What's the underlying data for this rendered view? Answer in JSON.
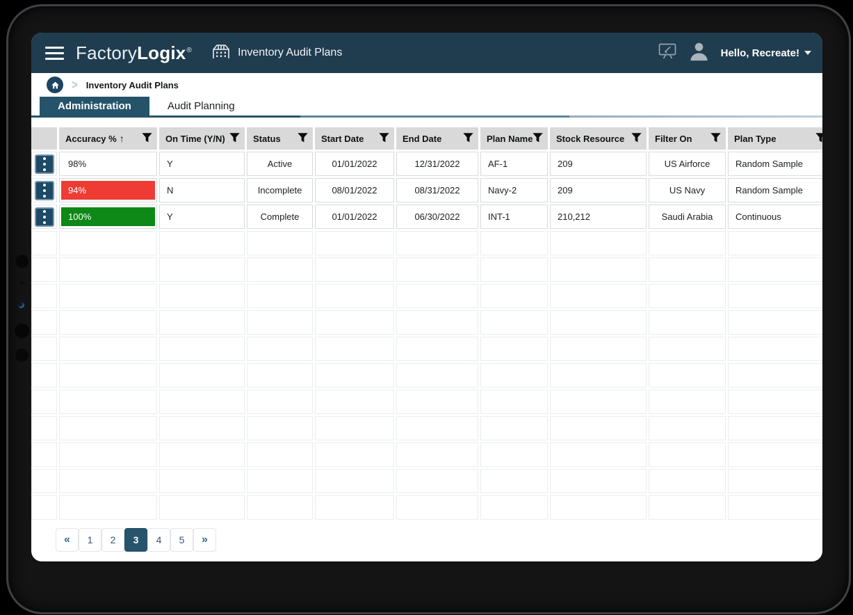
{
  "header": {
    "logo_light": "Factory",
    "logo_bold": "Logix",
    "logo_reg": "®",
    "module_title": "Inventory Audit Plans",
    "greeting": "Hello, Recreate!"
  },
  "breadcrumb": {
    "current": "Inventory Audit Plans"
  },
  "tabs": [
    {
      "label": "Administration",
      "active": true
    },
    {
      "label": "Audit Planning",
      "active": false
    }
  ],
  "icons": {
    "breadcrumb_chevron": ">",
    "sort_asc": "↑"
  },
  "table": {
    "columns": [
      {
        "label": "",
        "filter": false
      },
      {
        "label": "Accuracy %",
        "sort": "asc",
        "filter": true
      },
      {
        "label": "On Time (Y/N)",
        "filter": true
      },
      {
        "label": "Status",
        "filter": true
      },
      {
        "label": "Start Date",
        "filter": true
      },
      {
        "label": "End Date",
        "filter": true
      },
      {
        "label": "Plan Name",
        "filter": true
      },
      {
        "label": "Stock Resource",
        "filter": true
      },
      {
        "label": "Filter On",
        "filter": true
      },
      {
        "label": "Plan Type",
        "filter": true
      }
    ],
    "rows": [
      {
        "accuracy": "98%",
        "accuracy_style": "plain",
        "on_time": "Y",
        "status": "Active",
        "start_date": "01/01/2022",
        "end_date": "12/31/2022",
        "plan_name": "AF-1",
        "stock_resource": "209",
        "filter_on": "US Airforce",
        "plan_type": "Random Sample"
      },
      {
        "accuracy": "94%",
        "accuracy_style": "red",
        "on_time": "N",
        "status": "Incomplete",
        "start_date": "08/01/2022",
        "end_date": "08/31/2022",
        "plan_name": "Navy-2",
        "stock_resource": "209",
        "filter_on": "US Navy",
        "plan_type": "Random Sample"
      },
      {
        "accuracy": "100%",
        "accuracy_style": "green",
        "on_time": "Y",
        "status": "Complete",
        "start_date": "01/01/2022",
        "end_date": "06/30/2022",
        "plan_name": "INT-1",
        "stock_resource": "210,212",
        "filter_on": "Saudi Arabia",
        "plan_type": "Continuous"
      }
    ],
    "empty_row_count": 11
  },
  "pagination": {
    "items": [
      "«",
      "1",
      "2",
      "3",
      "4",
      "5",
      "»"
    ],
    "active": "3"
  },
  "colors": {
    "appbar_bg": "#203c4f",
    "tab_active_bg": "#24536a",
    "grid_header_bg": "#d9d9d9",
    "kebab_bg": "#1d4a66",
    "bar_red": "#ee3c35",
    "bar_green": "#0e8816",
    "pagination_active_bg": "#27536b"
  }
}
